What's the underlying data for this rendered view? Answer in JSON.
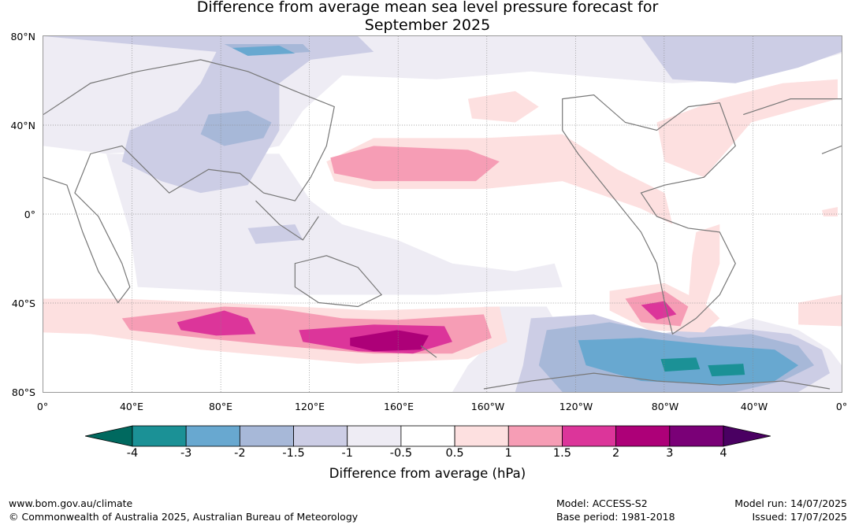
{
  "title_line1": "Difference from average mean sea level pressure forecast for",
  "title_line2": "September 2025",
  "lat_labels": [
    "80°N",
    "40°N",
    "0°",
    "40°S",
    "80°S"
  ],
  "lon_labels": [
    "0°",
    "40°E",
    "80°E",
    "120°E",
    "160°E",
    "160°W",
    "120°W",
    "80°W",
    "40°W",
    "0°"
  ],
  "colorbar": {
    "labels": [
      "-4",
      "-3",
      "-2",
      "-1.5",
      "-1",
      "-0.5",
      "0.5",
      "1",
      "1.5",
      "2",
      "3",
      "4"
    ],
    "colors": [
      "#1b9196",
      "#68a8d0",
      "#a7b8d8",
      "#cccde5",
      "#eeecf4",
      "#ffffff",
      "#fde0e0",
      "#f69db5",
      "#dc359a",
      "#ad0078",
      "#7a0077"
    ],
    "low_extend_color": "#00695f",
    "high_extend_color": "#4a0062",
    "title": "Difference from average (hPa)"
  },
  "footer": {
    "website": "www.bom.gov.au/climate",
    "copyright": "© Commonwealth of Australia 2025, Australian Bureau of Meteorology",
    "model": "Model: ACCESS-S2",
    "base_period": "Base period: 1981-2018",
    "model_run": "Model run: 14/07/2025",
    "issued": "Issued: 17/07/2025"
  }
}
